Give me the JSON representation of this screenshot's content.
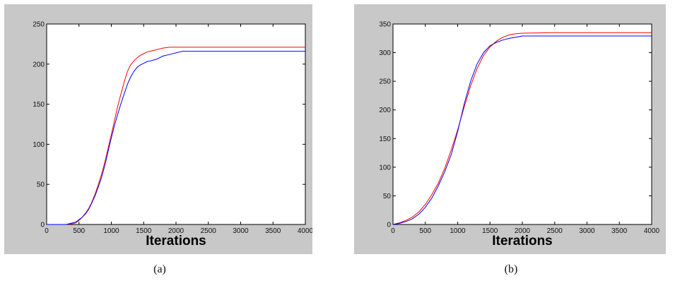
{
  "captions": {
    "a": "(a)",
    "b": "(b)"
  },
  "chart_data": [
    {
      "type": "line",
      "title": "",
      "xlabel": "Iterations",
      "ylabel": "",
      "xlim": [
        0,
        4000
      ],
      "ylim": [
        0,
        250
      ],
      "xticks": [
        0,
        500,
        1000,
        1500,
        2000,
        2500,
        3000,
        3500,
        4000
      ],
      "yticks": [
        0,
        50,
        100,
        150,
        200,
        250
      ],
      "grid": false,
      "series": [
        {
          "color": "#ff0000",
          "x": [
            0,
            300,
            400,
            450,
            500,
            550,
            600,
            650,
            700,
            750,
            800,
            850,
            900,
            950,
            1000,
            1050,
            1100,
            1150,
            1200,
            1250,
            1300,
            1350,
            1400,
            1450,
            1500,
            1550,
            1600,
            1650,
            1700,
            1750,
            1800,
            1900,
            2000,
            2500,
            3000,
            3500,
            4000
          ],
          "y": [
            0,
            0,
            1,
            2,
            5,
            9,
            14,
            20,
            28,
            38,
            50,
            63,
            78,
            95,
            112,
            130,
            148,
            163,
            178,
            191,
            199,
            204,
            208,
            211,
            213,
            215,
            216,
            217,
            218,
            219,
            220,
            221,
            221,
            221,
            221,
            221,
            221
          ]
        },
        {
          "color": "#0000ff",
          "x": [
            0,
            300,
            400,
            450,
            500,
            550,
            600,
            650,
            700,
            750,
            800,
            850,
            900,
            950,
            1000,
            1050,
            1100,
            1150,
            1200,
            1250,
            1300,
            1350,
            1400,
            1450,
            1500,
            1550,
            1600,
            1650,
            1700,
            1750,
            1800,
            1900,
            2000,
            2100,
            2500,
            3000,
            3500,
            4000
          ],
          "y": [
            0,
            0,
            2,
            3,
            6,
            9,
            13,
            19,
            27,
            36,
            47,
            59,
            74,
            91,
            108,
            124,
            138,
            151,
            163,
            175,
            184,
            191,
            196,
            199,
            201,
            203,
            204,
            205,
            206,
            208,
            210,
            212,
            214,
            216,
            216,
            216,
            216,
            216
          ]
        }
      ]
    },
    {
      "type": "line",
      "title": "",
      "xlabel": "Iterations",
      "ylabel": "",
      "xlim": [
        0,
        4000
      ],
      "ylim": [
        0,
        350
      ],
      "xticks": [
        0,
        500,
        1000,
        1500,
        2000,
        2500,
        3000,
        3500,
        4000
      ],
      "yticks": [
        0,
        50,
        100,
        150,
        200,
        250,
        300,
        350
      ],
      "grid": false,
      "series": [
        {
          "color": "#ff0000",
          "x": [
            0,
            100,
            200,
            300,
            400,
            500,
            600,
            700,
            800,
            900,
            1000,
            1100,
            1200,
            1300,
            1400,
            1500,
            1600,
            1700,
            1800,
            1900,
            2000,
            2500,
            3000,
            3500,
            4000
          ],
          "y": [
            0,
            3,
            7,
            13,
            22,
            35,
            52,
            72,
            98,
            130,
            165,
            205,
            242,
            272,
            295,
            310,
            320,
            327,
            331,
            333,
            334,
            335,
            335,
            335,
            335
          ]
        },
        {
          "color": "#0000ff",
          "x": [
            0,
            100,
            200,
            300,
            400,
            500,
            600,
            700,
            800,
            900,
            1000,
            1100,
            1200,
            1300,
            1400,
            1500,
            1600,
            1700,
            1800,
            1900,
            2000,
            2500,
            3000,
            3500,
            4000
          ],
          "y": [
            0,
            2,
            5,
            10,
            18,
            30,
            46,
            67,
            92,
            122,
            162,
            210,
            250,
            280,
            300,
            312,
            318,
            322,
            325,
            327,
            329,
            329,
            329,
            329,
            329
          ]
        }
      ]
    }
  ]
}
